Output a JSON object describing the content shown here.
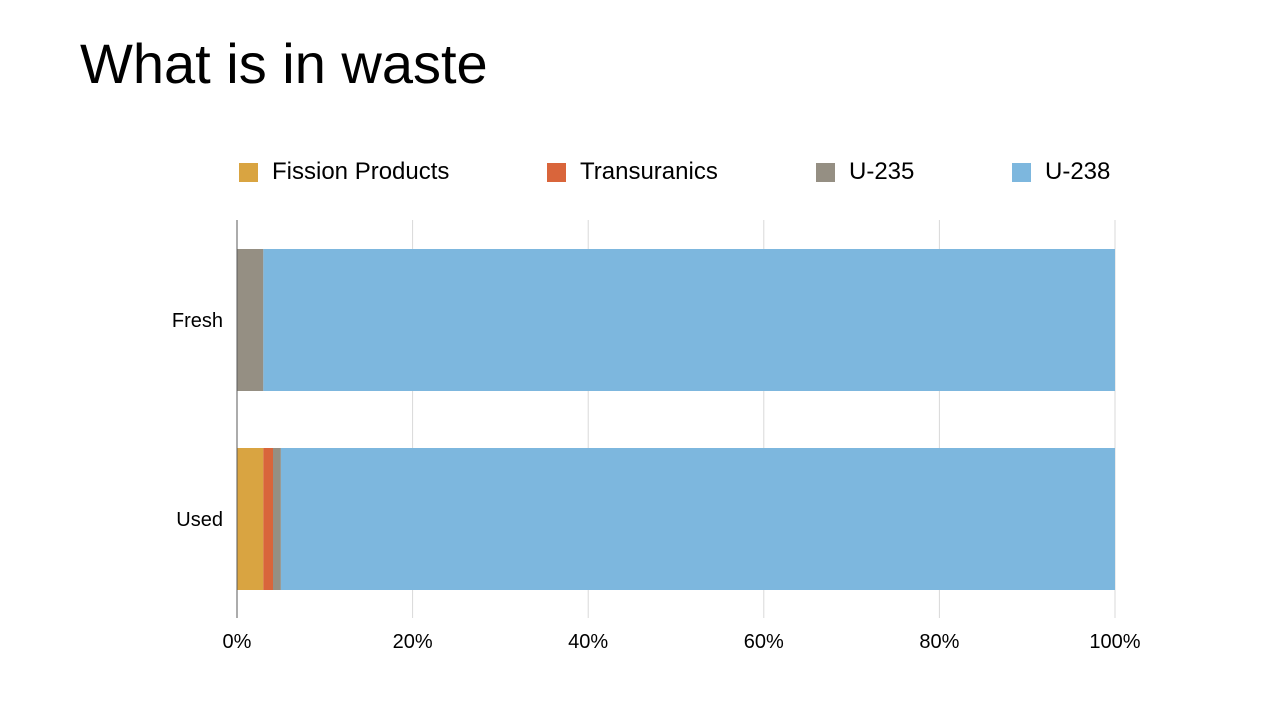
{
  "slide": {
    "title": "What is in waste"
  },
  "chart_data": {
    "type": "bar",
    "orientation": "horizontal",
    "stacked": "percent",
    "categories": [
      "Fresh",
      "Used"
    ],
    "series": [
      {
        "name": "Fission Products",
        "color": "#D9A441",
        "values": [
          0,
          3
        ]
      },
      {
        "name": "Transuranics",
        "color": "#D9653B",
        "values": [
          0,
          1.1
        ]
      },
      {
        "name": "U-235",
        "color": "#958F83",
        "values": [
          3,
          0.9
        ]
      },
      {
        "name": "U-238",
        "color": "#7DB7DE",
        "values": [
          97,
          95
        ]
      }
    ],
    "xlim": [
      0,
      100
    ],
    "xticks": [
      "0%",
      "20%",
      "40%",
      "60%",
      "80%",
      "100%"
    ],
    "grid": "vertical",
    "legend": "top"
  }
}
